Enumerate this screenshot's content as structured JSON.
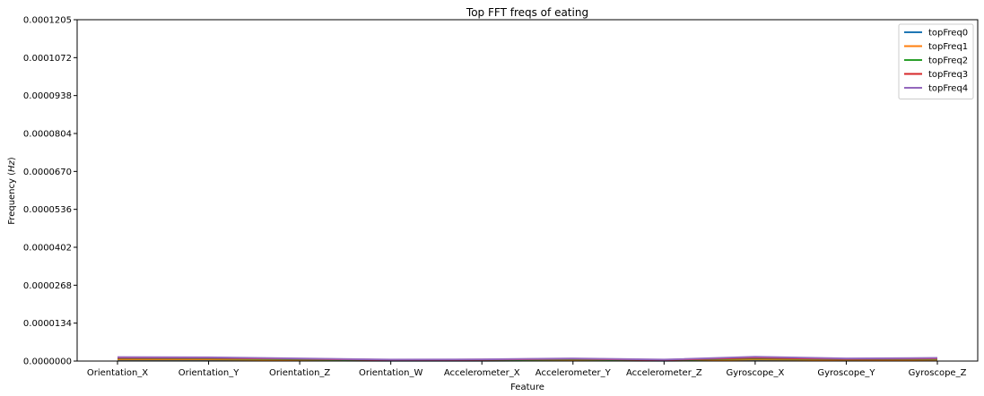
{
  "chart_data": {
    "type": "line",
    "title": "Top FFT freqs of eating",
    "xlabel": "Feature",
    "ylabel": "Frequency (Hz)",
    "categories": [
      "Orientation_X",
      "Orientation_Y",
      "Orientation_Z",
      "Orientation_W",
      "Accelerometer_X",
      "Accelerometer_Y",
      "Accelerometer_Z",
      "Gyroscope_X",
      "Gyroscope_Y",
      "Gyroscope_Z"
    ],
    "ylim": [
      0,
      0.0001205
    ],
    "yticks": [
      "0.0000000",
      "0.0000134",
      "0.0000268",
      "0.0000402",
      "0.0000536",
      "0.0000670",
      "0.0000804",
      "0.0000938",
      "0.0001072",
      "0.0001205"
    ],
    "grid": false,
    "legend_position": "top-right",
    "series": [
      {
        "name": "topFreq0",
        "color": "#1f77b4",
        "values": [
          3e-07,
          3e-07,
          2e-07,
          1e-07,
          1e-07,
          2e-07,
          1e-07,
          3e-07,
          2e-07,
          2e-07
        ]
      },
      {
        "name": "topFreq1",
        "color": "#ff7f0e",
        "values": [
          6e-07,
          6e-07,
          4e-07,
          2e-07,
          3e-07,
          4e-07,
          2e-07,
          6e-07,
          4e-07,
          5e-07
        ]
      },
      {
        "name": "topFreq2",
        "color": "#2ca02c",
        "values": [
          9e-07,
          9e-07,
          6e-07,
          3e-07,
          4e-07,
          6e-07,
          3e-07,
          9e-07,
          6e-07,
          7e-07
        ]
      },
      {
        "name": "topFreq3",
        "color": "#d62728",
        "values": [
          1.1e-06,
          1.1e-06,
          8e-07,
          4e-07,
          5e-07,
          8e-07,
          4e-07,
          1.2e-06,
          7e-07,
          9e-07
        ]
      },
      {
        "name": "topFreq4",
        "color": "#9467bd",
        "values": [
          1.4e-06,
          1.3e-06,
          9e-07,
          5e-07,
          6e-07,
          9e-07,
          5e-07,
          1.5e-06,
          9e-07,
          1.1e-06
        ]
      }
    ]
  }
}
